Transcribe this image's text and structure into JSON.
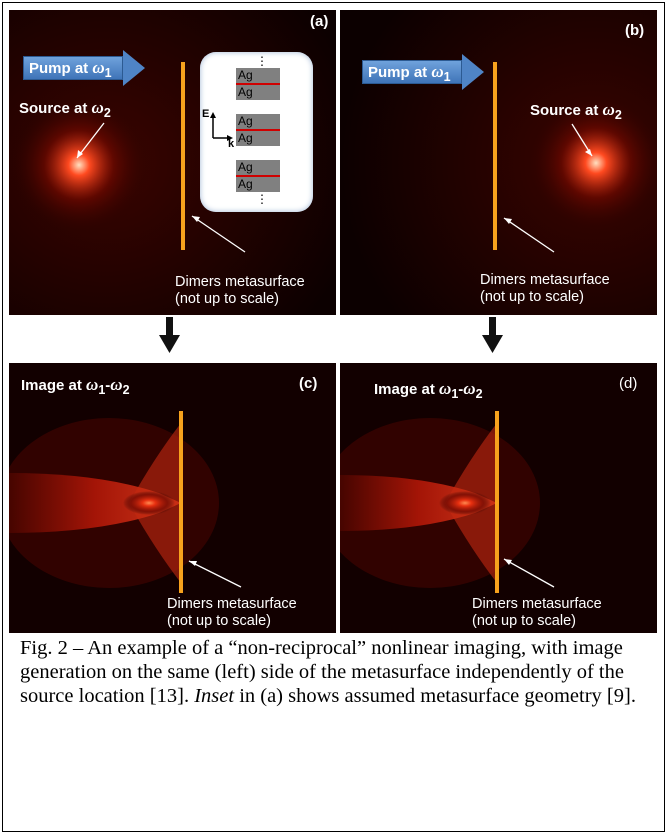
{
  "panels": [
    {
      "id": "a",
      "label": "(a)",
      "pump": {
        "text": "Pump at ",
        "omega": "ω",
        "sub": "1"
      },
      "source": {
        "text": "Source at ",
        "omega": "ω",
        "sub": "2"
      },
      "note_line1": "Dimers metasurface",
      "note_line2": "(not up to scale)"
    },
    {
      "id": "b",
      "label": "(b)",
      "pump": {
        "text": "Pump at ",
        "omega": "ω",
        "sub": "1"
      },
      "source": {
        "text": "Source at ",
        "omega": "ω",
        "sub": "2"
      },
      "note_line1": "Dimers metasurface",
      "note_line2": "(not up to scale)"
    },
    {
      "id": "c",
      "label": "(c)",
      "image": {
        "text": "Image at ",
        "omega1": "ω",
        "sub1": "1",
        "dash": "-",
        "omega2": "ω",
        "sub2": "2"
      },
      "note_line1": "Dimers metasurface",
      "note_line2": "(not up to scale)"
    },
    {
      "id": "d",
      "label": "(d)",
      "image": {
        "text": "Image at ",
        "omega1": "ω",
        "sub1": "1",
        "dash": "-",
        "omega2": "ω",
        "sub2": "2"
      },
      "note_line1": "Dimers metasurface",
      "note_line2": "(not up to scale)"
    }
  ],
  "inset": {
    "layer_label": "Ag",
    "field_label": "E",
    "wave_label": "k",
    "ellipsis": "⋮"
  },
  "caption": {
    "part1": "Fig. 2 – An example of a “non-reciprocal” nonlinear imaging, with image generation on the same (left) side of the metasurface independently of the source location [13]. ",
    "inset_word": "Inset",
    "part2": " in (a) shows assumed metasurface geometry [9]."
  },
  "colors": {
    "metasurface": "#f7a21d",
    "pump_arrow": "#4f84c6",
    "glow": "#ff3a10",
    "background": "#0c0000"
  }
}
